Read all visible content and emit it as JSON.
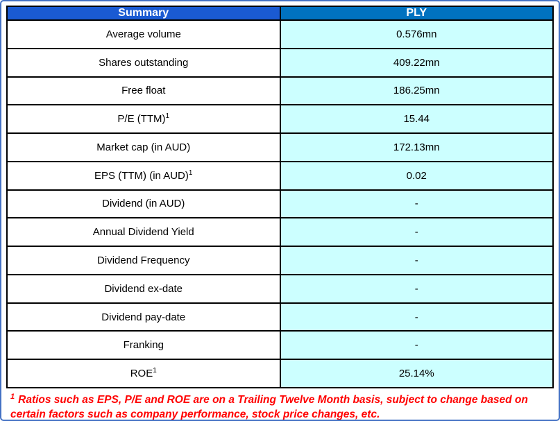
{
  "table": {
    "header": {
      "col1": "Summary",
      "col2": "PLY"
    },
    "rows": [
      {
        "label": "Average volume",
        "sup": "",
        "value": "0.576mn"
      },
      {
        "label": "Shares outstanding",
        "sup": "",
        "value": "409.22mn"
      },
      {
        "label": "Free float",
        "sup": "",
        "value": "186.25mn"
      },
      {
        "label": "P/E (TTM)",
        "sup": "1",
        "value": "15.44"
      },
      {
        "label": "Market cap (in AUD)",
        "sup": "",
        "value": "172.13mn"
      },
      {
        "label": "EPS (TTM) (in AUD)",
        "sup": "1",
        "value": "0.02"
      },
      {
        "label": "Dividend (in AUD)",
        "sup": "",
        "value": "-"
      },
      {
        "label": "Annual Dividend Yield",
        "sup": "",
        "value": "-"
      },
      {
        "label": "Dividend Frequency",
        "sup": "",
        "value": "-"
      },
      {
        "label": "Dividend ex-date",
        "sup": "",
        "value": "-"
      },
      {
        "label": "Dividend pay-date",
        "sup": "",
        "value": "-"
      },
      {
        "label": "Franking",
        "sup": "",
        "value": "-"
      },
      {
        "label": "ROE",
        "sup": "1",
        "value": "25.14%"
      }
    ]
  },
  "footnote": {
    "sup": "1",
    "text": "Ratios such as EPS, P/E and ROE are on a Trailing Twelve Month basis, subject to change based on certain factors such as company performance, stock price changes, etc."
  },
  "colors": {
    "outer_border": "#4472C4",
    "summary_header_bg": "#1A5AD2",
    "ply_header_bg": "#0072C0",
    "value_cell_bg": "#CCFFFF",
    "label_cell_bg": "#FFFFFF",
    "cell_border": "#000000",
    "footnote_text_color": "#FF0000"
  },
  "chart_data": {
    "type": "table",
    "title": "Summary",
    "columns": [
      "Summary",
      "PLY"
    ],
    "rows": [
      [
        "Average volume",
        "0.576mn"
      ],
      [
        "Shares outstanding",
        "409.22mn"
      ],
      [
        "Free float",
        "186.25mn"
      ],
      [
        "P/E (TTM)1",
        "15.44"
      ],
      [
        "Market cap (in AUD)",
        "172.13mn"
      ],
      [
        "EPS (TTM) (in AUD)1",
        "0.02"
      ],
      [
        "Dividend (in AUD)",
        "-"
      ],
      [
        "Annual Dividend Yield",
        "-"
      ],
      [
        "Dividend Frequency",
        "-"
      ],
      [
        "Dividend ex-date",
        "-"
      ],
      [
        "Dividend pay-date",
        "-"
      ],
      [
        "Franking",
        "-"
      ],
      [
        "ROE1",
        "25.14%"
      ]
    ],
    "annotations": [
      "1 Ratios such as EPS, P/E and ROE are on a Trailing Twelve Month basis, subject to change based on certain factors such as company performance, stock price changes, etc."
    ],
    "layout_hints": {
      "header_bg_col1": "#1A5AD2",
      "header_bg_col2": "#0072C0",
      "value_column_bg": "#CCFFFF",
      "grid": true
    }
  }
}
